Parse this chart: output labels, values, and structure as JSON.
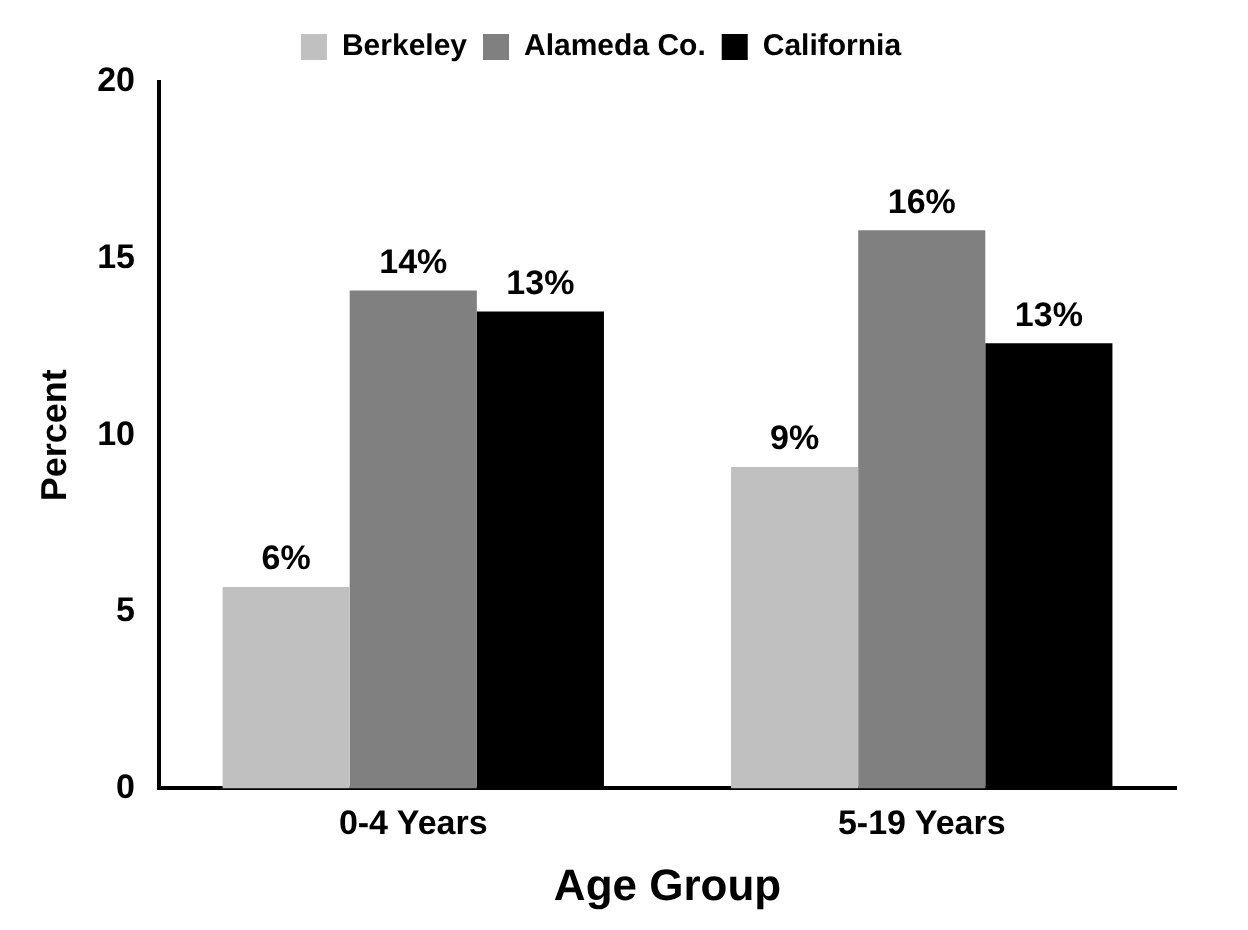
{
  "chart_data": {
    "type": "bar",
    "xlabel": "Age Group",
    "ylabel": "Percent",
    "categories": [
      "0-4 Years",
      "5-19 Years"
    ],
    "series": [
      {
        "name": "Berkeley",
        "color": "#c0c0c0",
        "values": [
          5.7,
          9.1
        ],
        "value_labels": [
          "6%",
          "9%"
        ]
      },
      {
        "name": "Alameda Co.",
        "color": "#808080",
        "values": [
          14.1,
          15.8
        ],
        "value_labels": [
          "14%",
          "16%"
        ]
      },
      {
        "name": "California",
        "color": "#000000",
        "values": [
          13.5,
          12.6
        ],
        "value_labels": [
          "13%",
          "13%"
        ]
      }
    ],
    "ylim": [
      0,
      20
    ],
    "yticks": [
      0,
      5,
      10,
      15,
      20
    ],
    "legend": "top",
    "grid": false
  }
}
